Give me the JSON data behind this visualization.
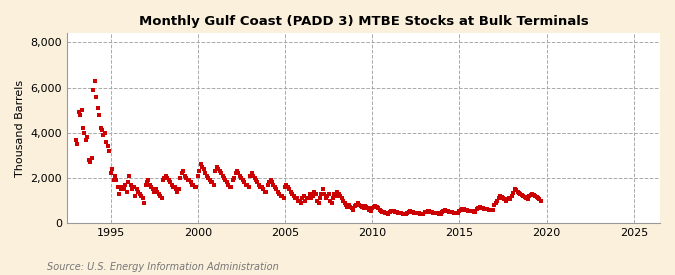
{
  "title": "Monthly Gulf Coast (PADD 3) MTBE Stocks at Bulk Terminals",
  "ylabel": "Thousand Barrels",
  "source": "Source: U.S. Energy Information Administration",
  "fig_bg_color": "#FAF0DC",
  "plot_bg_color": "#FFFFFF",
  "marker_color": "#CC0000",
  "marker": "s",
  "marker_size": 3.0,
  "xlim": [
    1992.5,
    2026.5
  ],
  "ylim": [
    0,
    8400
  ],
  "yticks": [
    0,
    2000,
    4000,
    6000,
    8000
  ],
  "ytick_labels": [
    "0",
    "2,000",
    "4,000",
    "6,000",
    "8,000"
  ],
  "xticks": [
    1995,
    2000,
    2005,
    2010,
    2015,
    2020,
    2025
  ],
  "xtick_labels": [
    "1995",
    "2000",
    "2005",
    "2010",
    "2015",
    "2020",
    "2025"
  ],
  "data": [
    [
      1993.0,
      3700
    ],
    [
      1993.08,
      3500
    ],
    [
      1993.17,
      4900
    ],
    [
      1993.25,
      4800
    ],
    [
      1993.33,
      5000
    ],
    [
      1993.42,
      4200
    ],
    [
      1993.5,
      4000
    ],
    [
      1993.58,
      3700
    ],
    [
      1993.67,
      3800
    ],
    [
      1993.75,
      2800
    ],
    [
      1993.83,
      2700
    ],
    [
      1993.92,
      2900
    ],
    [
      1994.0,
      5900
    ],
    [
      1994.08,
      6300
    ],
    [
      1994.17,
      5600
    ],
    [
      1994.25,
      5100
    ],
    [
      1994.33,
      4800
    ],
    [
      1994.42,
      4200
    ],
    [
      1994.5,
      4100
    ],
    [
      1994.58,
      3900
    ],
    [
      1994.67,
      4000
    ],
    [
      1994.75,
      3600
    ],
    [
      1994.83,
      3400
    ],
    [
      1994.92,
      3200
    ],
    [
      1995.0,
      2200
    ],
    [
      1995.08,
      2400
    ],
    [
      1995.17,
      1900
    ],
    [
      1995.25,
      2100
    ],
    [
      1995.33,
      1900
    ],
    [
      1995.42,
      1600
    ],
    [
      1995.5,
      1300
    ],
    [
      1995.58,
      1500
    ],
    [
      1995.67,
      1600
    ],
    [
      1995.75,
      1500
    ],
    [
      1995.83,
      1700
    ],
    [
      1995.92,
      1400
    ],
    [
      1996.0,
      1800
    ],
    [
      1996.08,
      2100
    ],
    [
      1996.17,
      1700
    ],
    [
      1996.25,
      1500
    ],
    [
      1996.33,
      1600
    ],
    [
      1996.42,
      1200
    ],
    [
      1996.5,
      1500
    ],
    [
      1996.58,
      1400
    ],
    [
      1996.67,
      1300
    ],
    [
      1996.75,
      1200
    ],
    [
      1996.83,
      1100
    ],
    [
      1996.92,
      900
    ],
    [
      1997.0,
      1700
    ],
    [
      1997.08,
      1800
    ],
    [
      1997.17,
      1900
    ],
    [
      1997.25,
      1700
    ],
    [
      1997.33,
      1600
    ],
    [
      1997.42,
      1500
    ],
    [
      1997.5,
      1400
    ],
    [
      1997.58,
      1500
    ],
    [
      1997.67,
      1400
    ],
    [
      1997.75,
      1300
    ],
    [
      1997.83,
      1200
    ],
    [
      1997.92,
      1100
    ],
    [
      1998.0,
      1900
    ],
    [
      1998.08,
      2000
    ],
    [
      1998.17,
      2100
    ],
    [
      1998.25,
      2000
    ],
    [
      1998.33,
      1900
    ],
    [
      1998.42,
      1800
    ],
    [
      1998.5,
      1700
    ],
    [
      1998.58,
      1600
    ],
    [
      1998.67,
      1600
    ],
    [
      1998.75,
      1500
    ],
    [
      1998.83,
      1400
    ],
    [
      1998.92,
      1500
    ],
    [
      1999.0,
      2000
    ],
    [
      1999.08,
      2200
    ],
    [
      1999.17,
      2300
    ],
    [
      1999.25,
      2100
    ],
    [
      1999.33,
      2000
    ],
    [
      1999.42,
      1900
    ],
    [
      1999.5,
      1900
    ],
    [
      1999.58,
      1800
    ],
    [
      1999.67,
      1700
    ],
    [
      1999.75,
      1700
    ],
    [
      1999.83,
      1600
    ],
    [
      1999.92,
      1600
    ],
    [
      2000.0,
      2100
    ],
    [
      2000.08,
      2300
    ],
    [
      2000.17,
      2600
    ],
    [
      2000.25,
      2500
    ],
    [
      2000.33,
      2400
    ],
    [
      2000.42,
      2200
    ],
    [
      2000.5,
      2100
    ],
    [
      2000.58,
      2000
    ],
    [
      2000.67,
      1900
    ],
    [
      2000.75,
      1800
    ],
    [
      2000.83,
      1800
    ],
    [
      2000.92,
      1700
    ],
    [
      2001.0,
      2300
    ],
    [
      2001.08,
      2500
    ],
    [
      2001.17,
      2400
    ],
    [
      2001.25,
      2300
    ],
    [
      2001.33,
      2200
    ],
    [
      2001.42,
      2100
    ],
    [
      2001.5,
      2000
    ],
    [
      2001.58,
      1900
    ],
    [
      2001.67,
      1800
    ],
    [
      2001.75,
      1700
    ],
    [
      2001.83,
      1600
    ],
    [
      2001.92,
      1600
    ],
    [
      2002.0,
      1900
    ],
    [
      2002.08,
      2000
    ],
    [
      2002.17,
      2200
    ],
    [
      2002.25,
      2300
    ],
    [
      2002.33,
      2200
    ],
    [
      2002.42,
      2100
    ],
    [
      2002.5,
      2000
    ],
    [
      2002.58,
      1900
    ],
    [
      2002.67,
      1800
    ],
    [
      2002.75,
      1700
    ],
    [
      2002.83,
      1700
    ],
    [
      2002.92,
      1600
    ],
    [
      2003.0,
      2100
    ],
    [
      2003.08,
      2200
    ],
    [
      2003.17,
      2100
    ],
    [
      2003.25,
      2000
    ],
    [
      2003.33,
      1900
    ],
    [
      2003.42,
      1800
    ],
    [
      2003.5,
      1700
    ],
    [
      2003.58,
      1600
    ],
    [
      2003.67,
      1600
    ],
    [
      2003.75,
      1500
    ],
    [
      2003.83,
      1400
    ],
    [
      2003.92,
      1400
    ],
    [
      2004.0,
      1700
    ],
    [
      2004.08,
      1800
    ],
    [
      2004.17,
      1900
    ],
    [
      2004.25,
      1800
    ],
    [
      2004.33,
      1700
    ],
    [
      2004.42,
      1600
    ],
    [
      2004.5,
      1500
    ],
    [
      2004.58,
      1400
    ],
    [
      2004.67,
      1300
    ],
    [
      2004.75,
      1200
    ],
    [
      2004.83,
      1200
    ],
    [
      2004.92,
      1100
    ],
    [
      2005.0,
      1600
    ],
    [
      2005.08,
      1700
    ],
    [
      2005.17,
      1600
    ],
    [
      2005.25,
      1500
    ],
    [
      2005.33,
      1400
    ],
    [
      2005.42,
      1300
    ],
    [
      2005.5,
      1200
    ],
    [
      2005.58,
      1100
    ],
    [
      2005.67,
      1100
    ],
    [
      2005.75,
      1000
    ],
    [
      2005.83,
      1000
    ],
    [
      2005.92,
      900
    ],
    [
      2006.0,
      1100
    ],
    [
      2006.08,
      1200
    ],
    [
      2006.17,
      1000
    ],
    [
      2006.25,
      1100
    ],
    [
      2006.33,
      1100
    ],
    [
      2006.42,
      1300
    ],
    [
      2006.5,
      1100
    ],
    [
      2006.58,
      1200
    ],
    [
      2006.67,
      1400
    ],
    [
      2006.75,
      1300
    ],
    [
      2006.83,
      1000
    ],
    [
      2006.92,
      900
    ],
    [
      2007.0,
      1100
    ],
    [
      2007.08,
      1300
    ],
    [
      2007.17,
      1500
    ],
    [
      2007.25,
      1300
    ],
    [
      2007.33,
      1100
    ],
    [
      2007.42,
      1200
    ],
    [
      2007.5,
      1300
    ],
    [
      2007.58,
      1000
    ],
    [
      2007.67,
      900
    ],
    [
      2007.75,
      1100
    ],
    [
      2007.83,
      1300
    ],
    [
      2007.92,
      1200
    ],
    [
      2008.0,
      1400
    ],
    [
      2008.08,
      1300
    ],
    [
      2008.17,
      1200
    ],
    [
      2008.25,
      1100
    ],
    [
      2008.33,
      1000
    ],
    [
      2008.42,
      900
    ],
    [
      2008.5,
      800
    ],
    [
      2008.58,
      700
    ],
    [
      2008.67,
      800
    ],
    [
      2008.75,
      700
    ],
    [
      2008.83,
      650
    ],
    [
      2008.92,
      600
    ],
    [
      2009.0,
      750
    ],
    [
      2009.08,
      800
    ],
    [
      2009.17,
      900
    ],
    [
      2009.25,
      800
    ],
    [
      2009.33,
      750
    ],
    [
      2009.42,
      700
    ],
    [
      2009.5,
      650
    ],
    [
      2009.58,
      750
    ],
    [
      2009.67,
      700
    ],
    [
      2009.75,
      650
    ],
    [
      2009.83,
      600
    ],
    [
      2009.92,
      550
    ],
    [
      2010.0,
      650
    ],
    [
      2010.08,
      700
    ],
    [
      2010.17,
      750
    ],
    [
      2010.25,
      700
    ],
    [
      2010.33,
      650
    ],
    [
      2010.42,
      600
    ],
    [
      2010.5,
      550
    ],
    [
      2010.58,
      500
    ],
    [
      2010.67,
      480
    ],
    [
      2010.75,
      460
    ],
    [
      2010.83,
      440
    ],
    [
      2010.92,
      420
    ],
    [
      2011.0,
      500
    ],
    [
      2011.08,
      520
    ],
    [
      2011.17,
      550
    ],
    [
      2011.25,
      530
    ],
    [
      2011.33,
      510
    ],
    [
      2011.42,
      490
    ],
    [
      2011.5,
      470
    ],
    [
      2011.58,
      450
    ],
    [
      2011.67,
      430
    ],
    [
      2011.75,
      410
    ],
    [
      2011.83,
      400
    ],
    [
      2011.92,
      390
    ],
    [
      2012.0,
      470
    ],
    [
      2012.08,
      500
    ],
    [
      2012.17,
      530
    ],
    [
      2012.25,
      510
    ],
    [
      2012.33,
      490
    ],
    [
      2012.42,
      470
    ],
    [
      2012.5,
      450
    ],
    [
      2012.58,
      440
    ],
    [
      2012.67,
      430
    ],
    [
      2012.75,
      420
    ],
    [
      2012.83,
      410
    ],
    [
      2012.92,
      400
    ],
    [
      2013.0,
      480
    ],
    [
      2013.08,
      510
    ],
    [
      2013.17,
      540
    ],
    [
      2013.25,
      520
    ],
    [
      2013.33,
      500
    ],
    [
      2013.42,
      480
    ],
    [
      2013.5,
      460
    ],
    [
      2013.58,
      450
    ],
    [
      2013.67,
      440
    ],
    [
      2013.75,
      430
    ],
    [
      2013.83,
      420
    ],
    [
      2013.92,
      410
    ],
    [
      2014.0,
      500
    ],
    [
      2014.08,
      540
    ],
    [
      2014.17,
      570
    ],
    [
      2014.25,
      550
    ],
    [
      2014.33,
      530
    ],
    [
      2014.42,
      510
    ],
    [
      2014.5,
      490
    ],
    [
      2014.58,
      480
    ],
    [
      2014.67,
      470
    ],
    [
      2014.75,
      460
    ],
    [
      2014.83,
      450
    ],
    [
      2014.92,
      440
    ],
    [
      2015.0,
      550
    ],
    [
      2015.08,
      590
    ],
    [
      2015.17,
      630
    ],
    [
      2015.25,
      610
    ],
    [
      2015.33,
      590
    ],
    [
      2015.42,
      570
    ],
    [
      2015.5,
      550
    ],
    [
      2015.58,
      540
    ],
    [
      2015.67,
      530
    ],
    [
      2015.75,
      520
    ],
    [
      2015.83,
      510
    ],
    [
      2015.92,
      500
    ],
    [
      2016.0,
      620
    ],
    [
      2016.08,
      660
    ],
    [
      2016.17,
      700
    ],
    [
      2016.25,
      680
    ],
    [
      2016.33,
      660
    ],
    [
      2016.42,
      640
    ],
    [
      2016.5,
      620
    ],
    [
      2016.58,
      610
    ],
    [
      2016.67,
      600
    ],
    [
      2016.75,
      590
    ],
    [
      2016.83,
      580
    ],
    [
      2016.92,
      570
    ],
    [
      2017.0,
      800
    ],
    [
      2017.08,
      900
    ],
    [
      2017.17,
      1000
    ],
    [
      2017.25,
      1100
    ],
    [
      2017.33,
      1200
    ],
    [
      2017.42,
      1150
    ],
    [
      2017.5,
      1100
    ],
    [
      2017.58,
      1050
    ],
    [
      2017.67,
      1000
    ],
    [
      2017.75,
      1050
    ],
    [
      2017.83,
      1100
    ],
    [
      2017.92,
      1080
    ],
    [
      2018.0,
      1200
    ],
    [
      2018.08,
      1350
    ],
    [
      2018.17,
      1500
    ],
    [
      2018.25,
      1450
    ],
    [
      2018.33,
      1400
    ],
    [
      2018.42,
      1350
    ],
    [
      2018.5,
      1300
    ],
    [
      2018.58,
      1250
    ],
    [
      2018.67,
      1200
    ],
    [
      2018.75,
      1150
    ],
    [
      2018.83,
      1100
    ],
    [
      2018.92,
      1050
    ],
    [
      2019.0,
      1200
    ],
    [
      2019.08,
      1250
    ],
    [
      2019.17,
      1300
    ],
    [
      2019.25,
      1250
    ],
    [
      2019.33,
      1200
    ],
    [
      2019.42,
      1150
    ],
    [
      2019.5,
      1100
    ],
    [
      2019.58,
      1050
    ],
    [
      2019.67,
      1000
    ]
  ]
}
